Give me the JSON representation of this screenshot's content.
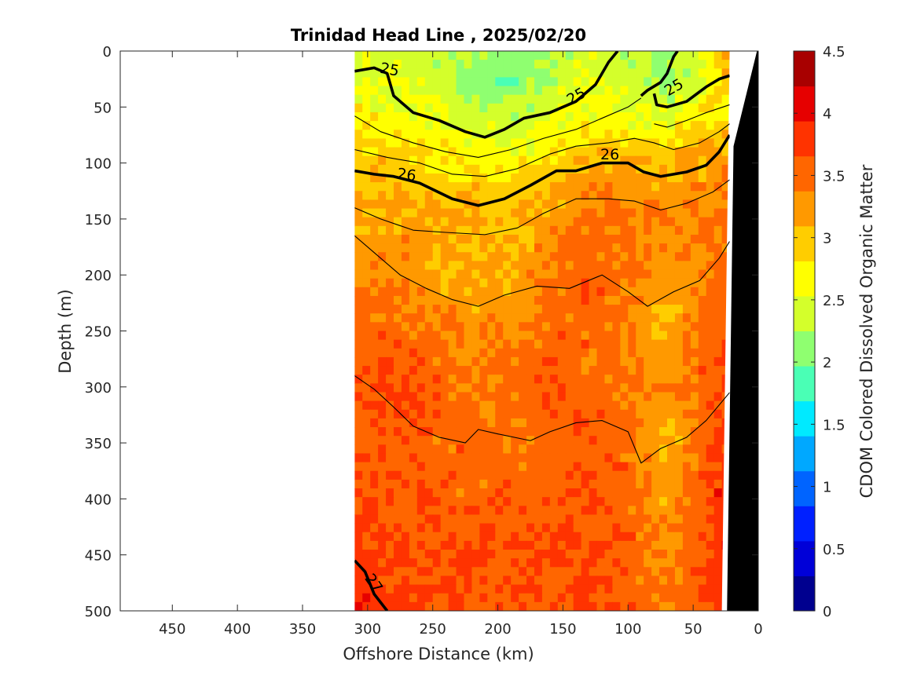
{
  "chart_data": {
    "type": "heatmap",
    "title": "Trinidad Head Line , 2025/02/20",
    "xlabel": "Offshore Distance (km)",
    "ylabel": "Depth (m)",
    "colorbar_label": "CDOM Colored Dissolved Organic Matter",
    "xlim": [
      490,
      0
    ],
    "ylim": [
      0,
      500
    ],
    "x_reversed": true,
    "y_reversed": true,
    "x_ticks": [
      450,
      400,
      350,
      300,
      250,
      200,
      150,
      100,
      50,
      0
    ],
    "y_ticks": [
      0,
      50,
      100,
      150,
      200,
      250,
      300,
      350,
      400,
      450,
      500
    ],
    "color_range": [
      0,
      4.5
    ],
    "color_ticks": [
      0,
      0.5,
      1,
      1.5,
      2,
      2.5,
      3,
      3.5,
      4,
      4.5
    ],
    "colormap": [
      "#00008f",
      "#0000d8",
      "#0020ff",
      "#0064ff",
      "#00a8ff",
      "#00eaff",
      "#4affb5",
      "#8fff70",
      "#d4ff2b",
      "#ffff00",
      "#ffcd00",
      "#ff9900",
      "#ff6600",
      "#ff3300",
      "#e60000",
      "#a80000"
    ],
    "data_extent_x_km": [
      310,
      22
    ],
    "grid": false,
    "cdom_grid": {
      "x_km": [
        310,
        280,
        250,
        220,
        190,
        160,
        130,
        100,
        70,
        40,
        22
      ],
      "depth_m": [
        0,
        25,
        50,
        75,
        100,
        125,
        150,
        200,
        250,
        300,
        350,
        400,
        450,
        500
      ],
      "values": [
        [
          2.5,
          2.4,
          2.3,
          2.2,
          2.1,
          2.3,
          2.4,
          2.3,
          2.1,
          2.5,
          3.5
        ],
        [
          2.6,
          2.5,
          2.4,
          2.1,
          2.0,
          2.3,
          2.5,
          2.4,
          2.2,
          2.6,
          3.0
        ],
        [
          2.7,
          2.6,
          2.5,
          2.3,
          2.2,
          2.4,
          2.6,
          2.5,
          2.4,
          2.7,
          2.8
        ],
        [
          2.8,
          2.8,
          2.7,
          2.5,
          2.4,
          2.6,
          2.8,
          2.7,
          2.7,
          2.9,
          3.0
        ],
        [
          2.9,
          3.0,
          2.9,
          2.8,
          2.7,
          2.9,
          3.1,
          3.2,
          3.1,
          3.2,
          3.3
        ],
        [
          3.0,
          3.1,
          3.0,
          3.0,
          2.9,
          3.1,
          3.4,
          3.3,
          3.2,
          3.3,
          3.4
        ],
        [
          3.1,
          3.2,
          3.2,
          3.1,
          3.0,
          3.2,
          3.4,
          3.5,
          3.3,
          3.4,
          3.5
        ],
        [
          3.3,
          3.4,
          3.2,
          3.1,
          3.1,
          3.4,
          3.6,
          3.4,
          3.1,
          3.4,
          3.5
        ],
        [
          3.5,
          3.5,
          3.4,
          3.3,
          3.3,
          3.5,
          3.5,
          3.4,
          3.1,
          3.5,
          3.6
        ],
        [
          3.6,
          3.7,
          3.6,
          3.4,
          3.5,
          3.6,
          3.5,
          3.5,
          3.2,
          3.6,
          3.7
        ],
        [
          3.6,
          3.6,
          3.5,
          3.5,
          3.4,
          3.5,
          3.6,
          3.5,
          3.0,
          3.6,
          3.8
        ],
        [
          3.7,
          3.6,
          3.6,
          3.5,
          3.6,
          3.5,
          3.6,
          3.5,
          3.2,
          3.7,
          3.9
        ],
        [
          3.8,
          3.7,
          3.6,
          3.7,
          3.6,
          3.7,
          3.7,
          3.6,
          3.3,
          3.7,
          3.9
        ],
        [
          3.9,
          3.8,
          3.7,
          3.6,
          3.7,
          3.6,
          3.7,
          3.6,
          3.4,
          3.7,
          3.9
        ]
      ]
    },
    "contours": [
      {
        "level": 25,
        "bold": true,
        "label": "25",
        "points": [
          [
            310,
            18
          ],
          [
            295,
            15
          ],
          [
            285,
            20
          ],
          [
            280,
            40
          ],
          [
            265,
            55
          ],
          [
            245,
            62
          ],
          [
            225,
            72
          ],
          [
            210,
            77
          ],
          [
            195,
            70
          ],
          [
            180,
            60
          ],
          [
            160,
            55
          ],
          [
            140,
            45
          ],
          [
            125,
            30
          ],
          [
            115,
            10
          ],
          [
            108,
            0
          ]
        ]
      },
      {
        "level": 25,
        "bold": true,
        "label": "25",
        "points": [
          [
            90,
            40
          ],
          [
            85,
            35
          ],
          [
            75,
            28
          ],
          [
            70,
            20
          ],
          [
            65,
            5
          ],
          [
            62,
            0
          ]
        ]
      },
      {
        "level": 25,
        "bold": true,
        "label": "25",
        "points": [
          [
            80,
            38
          ],
          [
            78,
            48
          ],
          [
            70,
            50
          ],
          [
            55,
            45
          ],
          [
            40,
            32
          ],
          [
            30,
            25
          ],
          [
            22,
            22
          ]
        ]
      },
      {
        "level": 26,
        "bold": true,
        "label": "26",
        "points": [
          [
            310,
            107
          ],
          [
            295,
            110
          ],
          [
            280,
            112
          ],
          [
            260,
            118
          ],
          [
            235,
            132
          ],
          [
            215,
            138
          ],
          [
            195,
            132
          ],
          [
            175,
            120
          ],
          [
            155,
            107
          ],
          [
            140,
            107
          ],
          [
            120,
            100
          ],
          [
            100,
            100
          ],
          [
            88,
            108
          ],
          [
            75,
            112
          ],
          [
            55,
            108
          ],
          [
            40,
            102
          ],
          [
            30,
            90
          ],
          [
            22,
            75
          ]
        ]
      },
      {
        "level": 27,
        "bold": true,
        "label": "27",
        "points": [
          [
            310,
            455
          ],
          [
            302,
            465
          ],
          [
            295,
            485
          ],
          [
            285,
            500
          ]
        ]
      },
      {
        "level": 25.5,
        "bold": false,
        "points": [
          [
            310,
            58
          ],
          [
            290,
            72
          ],
          [
            265,
            82
          ],
          [
            240,
            90
          ],
          [
            215,
            95
          ],
          [
            190,
            88
          ],
          [
            165,
            78
          ],
          [
            140,
            70
          ],
          [
            120,
            60
          ],
          [
            100,
            50
          ],
          [
            90,
            42
          ]
        ]
      },
      {
        "level": 25.5,
        "bold": false,
        "points": [
          [
            80,
            65
          ],
          [
            70,
            68
          ],
          [
            55,
            62
          ],
          [
            40,
            55
          ],
          [
            22,
            48
          ]
        ]
      },
      {
        "level": 25.8,
        "bold": false,
        "points": [
          [
            310,
            88
          ],
          [
            285,
            95
          ],
          [
            260,
            100
          ],
          [
            235,
            110
          ],
          [
            210,
            112
          ],
          [
            185,
            105
          ],
          [
            160,
            92
          ],
          [
            140,
            85
          ],
          [
            115,
            82
          ],
          [
            95,
            78
          ],
          [
            80,
            82
          ],
          [
            65,
            88
          ],
          [
            45,
            82
          ],
          [
            30,
            72
          ],
          [
            22,
            65
          ]
        ]
      },
      {
        "level": 26.2,
        "bold": false,
        "points": [
          [
            310,
            140
          ],
          [
            290,
            150
          ],
          [
            265,
            160
          ],
          [
            240,
            162
          ],
          [
            210,
            164
          ],
          [
            185,
            158
          ],
          [
            165,
            145
          ],
          [
            140,
            132
          ],
          [
            115,
            132
          ],
          [
            95,
            134
          ],
          [
            75,
            142
          ],
          [
            55,
            136
          ],
          [
            35,
            126
          ],
          [
            22,
            115
          ]
        ]
      },
      {
        "level": 26.4,
        "bold": false,
        "points": [
          [
            310,
            165
          ],
          [
            295,
            180
          ],
          [
            275,
            200
          ],
          [
            255,
            212
          ],
          [
            235,
            222
          ],
          [
            215,
            228
          ],
          [
            195,
            218
          ],
          [
            170,
            210
          ],
          [
            145,
            212
          ],
          [
            120,
            200
          ],
          [
            100,
            215
          ],
          [
            85,
            228
          ],
          [
            65,
            215
          ],
          [
            45,
            205
          ],
          [
            30,
            185
          ],
          [
            22,
            170
          ]
        ]
      },
      {
        "level": 26.6,
        "bold": false,
        "points": [
          [
            310,
            290
          ],
          [
            295,
            302
          ],
          [
            280,
            318
          ],
          [
            265,
            335
          ],
          [
            245,
            345
          ],
          [
            225,
            350
          ],
          [
            215,
            338
          ],
          [
            200,
            342
          ],
          [
            175,
            348
          ],
          [
            160,
            340
          ],
          [
            140,
            332
          ],
          [
            120,
            330
          ],
          [
            100,
            340
          ],
          [
            90,
            368
          ],
          [
            75,
            355
          ],
          [
            55,
            345
          ],
          [
            40,
            330
          ],
          [
            22,
            305
          ]
        ]
      }
    ]
  }
}
